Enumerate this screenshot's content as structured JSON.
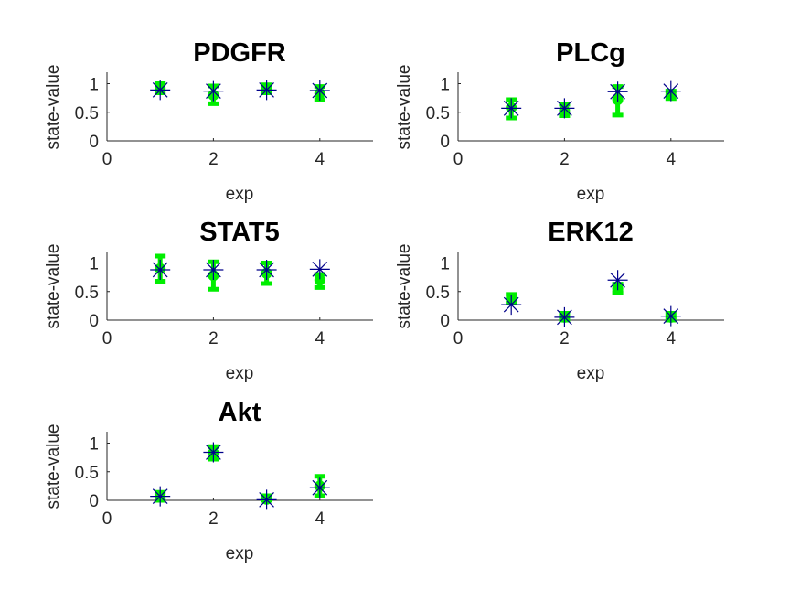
{
  "chart_data": [
    {
      "type": "scatter",
      "title": "PDGFR",
      "xlabel": "exp",
      "ylabel": "state-value",
      "xlim": [
        0,
        5
      ],
      "ylim": [
        0,
        1.2
      ],
      "xticks": [
        0,
        2,
        4
      ],
      "yticks": [
        0,
        0.5,
        1
      ],
      "xtick_labels": [
        "0",
        "2",
        "4"
      ],
      "ytick_labels": [
        "0",
        "0.5",
        "1"
      ],
      "data_color": "#00ee00",
      "model_color": "#00008b",
      "errorbars": [
        {
          "x": 1,
          "mean": 0.92,
          "low": 0.84,
          "high": 1.0
        },
        {
          "x": 2,
          "mean": 0.8,
          "low": 0.65,
          "high": 0.96
        },
        {
          "x": 3,
          "mean": 0.91,
          "low": 0.84,
          "high": 0.98
        },
        {
          "x": 4,
          "mean": 0.83,
          "low": 0.72,
          "high": 0.95
        }
      ],
      "model": [
        {
          "x": 1,
          "y": 0.89
        },
        {
          "x": 2,
          "y": 0.87
        },
        {
          "x": 3,
          "y": 0.89
        },
        {
          "x": 4,
          "y": 0.88
        }
      ]
    },
    {
      "type": "scatter",
      "title": "PLCg",
      "xlabel": "exp",
      "ylabel": "state-value",
      "xlim": [
        0,
        5
      ],
      "ylim": [
        0,
        1.2
      ],
      "xticks": [
        0,
        2,
        4
      ],
      "yticks": [
        0,
        0.5,
        1
      ],
      "xtick_labels": [
        "0",
        "2",
        "4"
      ],
      "ytick_labels": [
        "0",
        "0.5",
        "1"
      ],
      "data_color": "#00ee00",
      "model_color": "#00008b",
      "errorbars": [
        {
          "x": 1,
          "mean": 0.58,
          "low": 0.4,
          "high": 0.72
        },
        {
          "x": 2,
          "mean": 0.53,
          "low": 0.44,
          "high": 0.64
        },
        {
          "x": 3,
          "mean": 0.72,
          "low": 0.45,
          "high": 0.95
        },
        {
          "x": 4,
          "mean": 0.8,
          "low": 0.74,
          "high": 0.87
        }
      ],
      "model": [
        {
          "x": 1,
          "y": 0.57
        },
        {
          "x": 2,
          "y": 0.57
        },
        {
          "x": 3,
          "y": 0.86
        },
        {
          "x": 4,
          "y": 0.87
        }
      ]
    },
    {
      "type": "scatter",
      "title": "STAT5",
      "xlabel": "exp",
      "ylabel": "state-value",
      "xlim": [
        0,
        5
      ],
      "ylim": [
        0,
        1.2
      ],
      "xticks": [
        0,
        2,
        4
      ],
      "yticks": [
        0,
        0.5,
        1
      ],
      "xtick_labels": [
        "0",
        "2",
        "4"
      ],
      "ytick_labels": [
        "0",
        "0.5",
        "1"
      ],
      "data_color": "#00ee00",
      "model_color": "#00008b",
      "errorbars": [
        {
          "x": 1,
          "mean": 0.9,
          "low": 0.68,
          "high": 1.12
        },
        {
          "x": 2,
          "mean": 0.78,
          "low": 0.54,
          "high": 1.02
        },
        {
          "x": 3,
          "mean": 0.82,
          "low": 0.64,
          "high": 1.0
        },
        {
          "x": 4,
          "mean": 0.7,
          "low": 0.57,
          "high": 0.8
        }
      ],
      "model": [
        {
          "x": 1,
          "y": 0.88
        },
        {
          "x": 2,
          "y": 0.88
        },
        {
          "x": 3,
          "y": 0.88
        },
        {
          "x": 4,
          "y": 0.89
        }
      ]
    },
    {
      "type": "scatter",
      "title": "ERK12",
      "xlabel": "exp",
      "ylabel": "state-value",
      "xlim": [
        0,
        5
      ],
      "ylim": [
        0,
        1.2
      ],
      "xticks": [
        0,
        2,
        4
      ],
      "yticks": [
        0,
        0.5,
        1
      ],
      "xtick_labels": [
        "0",
        "2",
        "4"
      ],
      "ytick_labels": [
        "0",
        "0.5",
        "1"
      ],
      "data_color": "#00ee00",
      "model_color": "#00008b",
      "errorbars": [
        {
          "x": 1,
          "mean": 0.38,
          "low": 0.3,
          "high": 0.45
        },
        {
          "x": 2,
          "mean": 0.05,
          "low": 0.0,
          "high": 0.12
        },
        {
          "x": 3,
          "mean": 0.55,
          "low": 0.48,
          "high": 0.63
        },
        {
          "x": 4,
          "mean": 0.05,
          "low": 0.0,
          "high": 0.12
        }
      ],
      "model": [
        {
          "x": 1,
          "y": 0.27
        },
        {
          "x": 2,
          "y": 0.05
        },
        {
          "x": 3,
          "y": 0.7
        },
        {
          "x": 4,
          "y": 0.07
        }
      ]
    },
    {
      "type": "scatter",
      "title": "Akt",
      "xlabel": "exp",
      "ylabel": "state-value",
      "xlim": [
        0,
        5
      ],
      "ylim": [
        0,
        1.2
      ],
      "xticks": [
        0,
        2,
        4
      ],
      "yticks": [
        0,
        0.5,
        1
      ],
      "xtick_labels": [
        "0",
        "2",
        "4"
      ],
      "ytick_labels": [
        "0",
        "0.5",
        "1"
      ],
      "data_color": "#00ee00",
      "model_color": "#00008b",
      "errorbars": [
        {
          "x": 1,
          "mean": 0.07,
          "low": 0.0,
          "high": 0.14
        },
        {
          "x": 2,
          "mean": 0.83,
          "low": 0.72,
          "high": 0.94
        },
        {
          "x": 3,
          "mean": 0.02,
          "low": 0.0,
          "high": 0.08
        },
        {
          "x": 4,
          "mean": 0.25,
          "low": 0.08,
          "high": 0.42
        }
      ],
      "model": [
        {
          "x": 1,
          "y": 0.07
        },
        {
          "x": 2,
          "y": 0.84
        },
        {
          "x": 3,
          "y": 0.01
        },
        {
          "x": 4,
          "y": 0.22
        }
      ]
    }
  ]
}
